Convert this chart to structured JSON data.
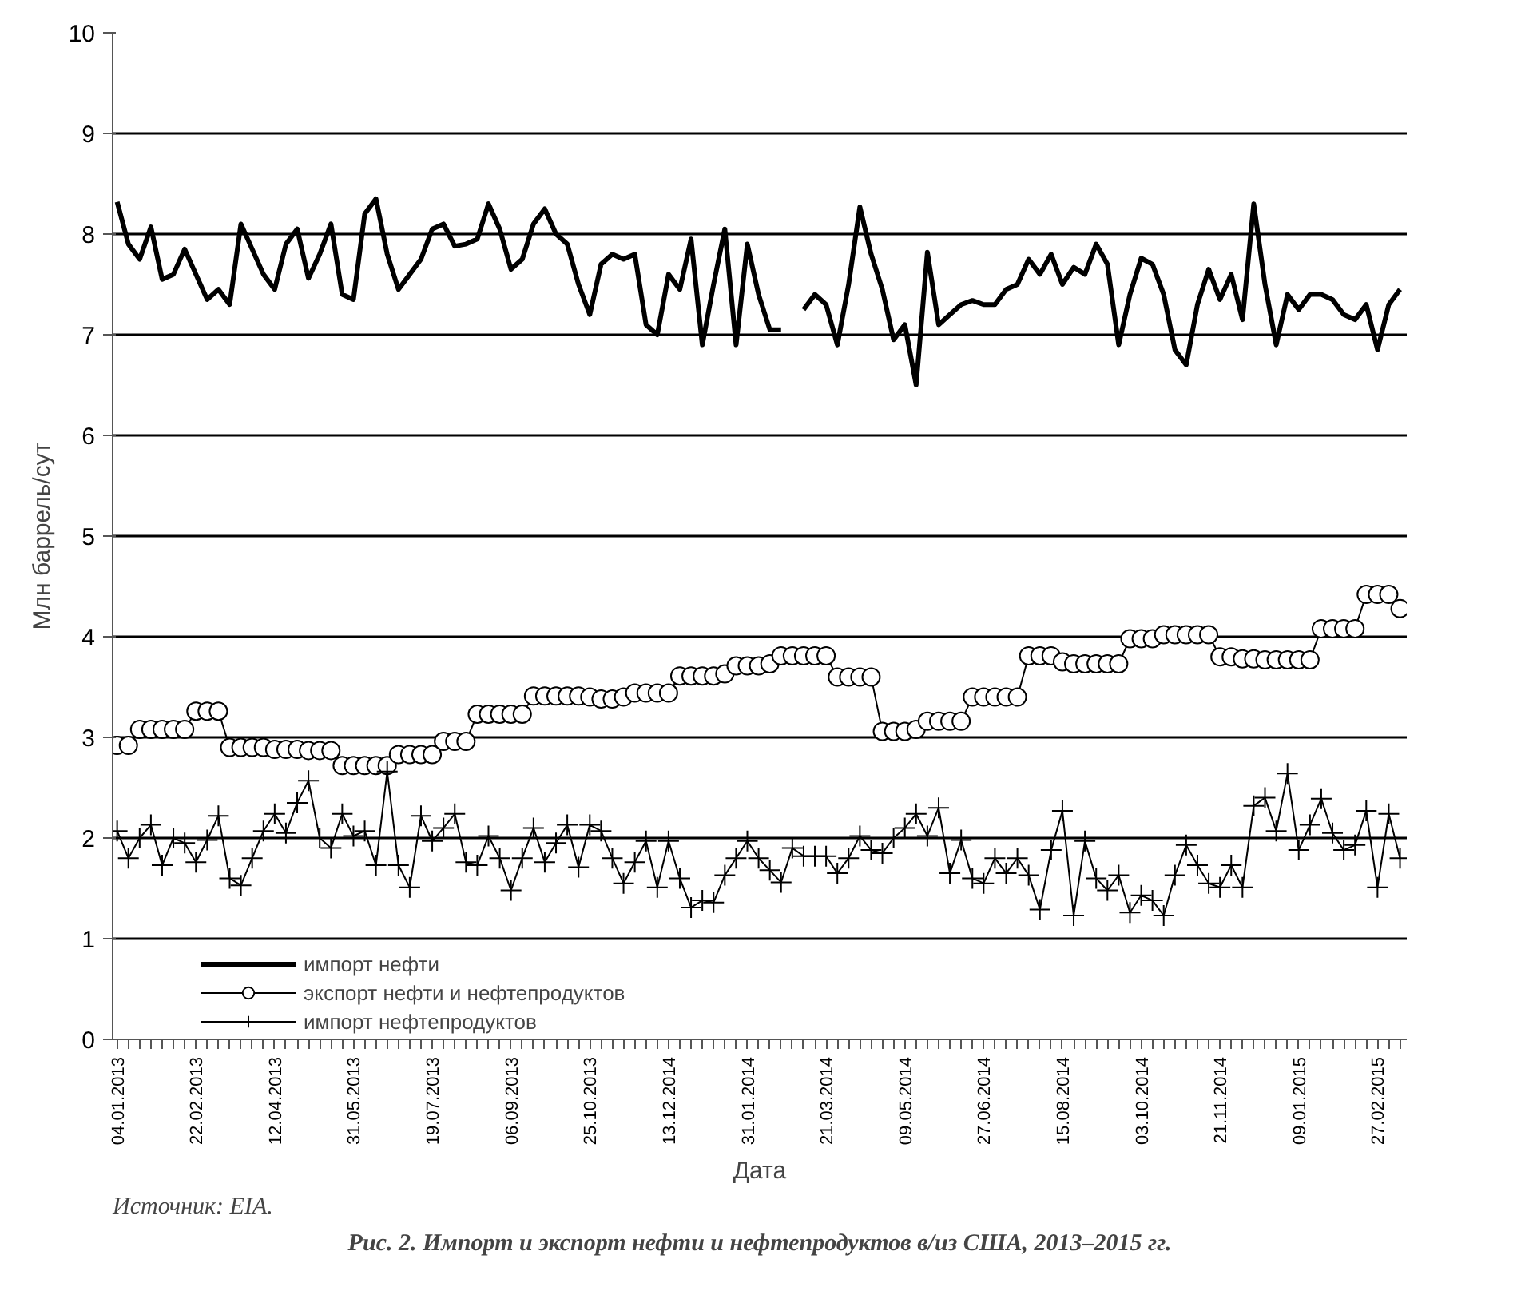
{
  "chart_data": {
    "type": "line",
    "title": "Рис. 2. Импорт и экспорт нефти и нефтепродуктов в/из США, 2013–2015 гг.",
    "xlabel": "Дата",
    "ylabel": "Млн баррель/сут",
    "annotations": [
      "Источник: EIA."
    ],
    "categories": [
      "04.01.2013",
      null,
      null,
      null,
      null,
      null,
      null,
      "22.02.2013",
      null,
      null,
      null,
      null,
      null,
      null,
      "12.04.2013",
      null,
      null,
      null,
      null,
      null,
      null,
      "31.05.2013",
      null,
      null,
      null,
      null,
      null,
      null,
      "19.07.2013",
      null,
      null,
      null,
      null,
      null,
      null,
      "06.09.2013",
      null,
      null,
      null,
      null,
      null,
      null,
      "25.10.2013",
      null,
      null,
      null,
      null,
      null,
      null,
      "13.12.2014",
      null,
      null,
      null,
      null,
      null,
      null,
      "31.01.2014",
      null,
      null,
      null,
      null,
      null,
      null,
      "21.03.2014",
      null,
      null,
      null,
      null,
      null,
      null,
      "09.05.2014",
      null,
      null,
      null,
      null,
      null,
      null,
      "27.06.2014",
      null,
      null,
      null,
      null,
      null,
      null,
      "15.08.2014",
      null,
      null,
      null,
      null,
      null,
      null,
      "03.10.2014",
      null,
      null,
      null,
      null,
      null,
      null,
      "21.11.2014",
      null,
      null,
      null,
      null,
      null,
      null,
      "09.01.2015",
      null,
      null,
      null,
      null,
      null,
      null,
      "27.02.2015",
      null,
      null
    ],
    "series": [
      {
        "name": "импорт нефти",
        "color": "#000000",
        "marker": "none",
        "values": [
          8.32,
          7.9,
          7.75,
          8.07,
          7.55,
          7.6,
          7.85,
          7.6,
          7.35,
          7.45,
          7.3,
          8.1,
          7.85,
          7.6,
          7.45,
          7.9,
          8.05,
          7.56,
          7.8,
          8.1,
          7.4,
          7.35,
          8.2,
          8.35,
          7.8,
          7.45,
          7.6,
          7.75,
          8.05,
          8.1,
          7.88,
          7.9,
          7.95,
          8.3,
          8.05,
          7.65,
          7.75,
          8.1,
          8.25,
          8.0,
          7.9,
          7.5,
          7.2,
          7.7,
          7.8,
          7.75,
          7.8,
          7.1,
          7.0,
          7.6,
          7.45,
          7.95,
          6.9,
          7.5,
          8.05,
          6.9,
          7.9,
          7.4,
          7.05,
          7.05,
          null,
          7.25,
          7.4,
          7.3,
          6.9,
          7.5,
          8.27,
          7.8,
          7.45,
          6.95,
          7.1,
          6.5,
          7.82,
          7.1,
          7.2,
          7.3,
          7.34,
          7.3,
          7.3,
          7.45,
          7.5,
          7.75,
          7.6,
          7.8,
          7.5,
          7.67,
          7.6,
          7.9,
          7.7,
          6.9,
          7.4,
          7.76,
          7.7,
          7.4,
          6.85,
          6.7,
          7.3,
          7.65,
          7.35,
          7.6,
          7.15,
          8.3,
          7.5,
          6.9,
          7.4,
          7.25,
          7.4,
          7.4,
          7.35,
          7.2,
          7.15,
          7.3,
          6.85,
          7.3,
          7.45
        ]
      },
      {
        "name": "экспорт нефти и нефтепродуктов",
        "color": "#000000",
        "marker": "circle",
        "values": [
          2.92,
          2.92,
          3.08,
          3.08,
          3.08,
          3.08,
          3.08,
          3.26,
          3.26,
          3.26,
          2.9,
          2.9,
          2.9,
          2.9,
          2.88,
          2.88,
          2.88,
          2.87,
          2.87,
          2.87,
          2.72,
          2.72,
          2.72,
          2.72,
          2.72,
          2.83,
          2.83,
          2.83,
          2.83,
          2.96,
          2.96,
          2.96,
          3.23,
          3.23,
          3.23,
          3.23,
          3.23,
          3.41,
          3.41,
          3.41,
          3.41,
          3.41,
          3.4,
          3.38,
          3.38,
          3.4,
          3.44,
          3.44,
          3.44,
          3.44,
          3.61,
          3.61,
          3.61,
          3.61,
          3.63,
          3.71,
          3.71,
          3.71,
          3.73,
          3.81,
          3.81,
          3.81,
          3.81,
          3.81,
          3.6,
          3.6,
          3.6,
          3.6,
          3.06,
          3.06,
          3.06,
          3.08,
          3.16,
          3.16,
          3.16,
          3.16,
          3.4,
          3.4,
          3.4,
          3.4,
          3.4,
          3.81,
          3.81,
          3.81,
          3.75,
          3.73,
          3.73,
          3.73,
          3.73,
          3.73,
          3.98,
          3.98,
          3.98,
          4.02,
          4.02,
          4.02,
          4.02,
          4.02,
          3.8,
          3.8,
          3.78,
          3.78,
          3.77,
          3.77,
          3.77,
          3.77,
          3.77,
          4.08,
          4.08,
          4.08,
          4.08,
          4.42,
          4.42,
          4.42,
          4.28
        ]
      },
      {
        "name": "импорт нефтепродуктов",
        "color": "#000000",
        "marker": "cross",
        "values": [
          2.07,
          1.8,
          2.0,
          2.13,
          1.73,
          2.0,
          1.95,
          1.76,
          1.98,
          2.22,
          1.6,
          1.53,
          1.8,
          2.07,
          2.24,
          2.05,
          2.35,
          2.57,
          2.0,
          1.9,
          2.24,
          2.02,
          2.07,
          1.73,
          2.66,
          1.73,
          1.51,
          2.22,
          1.97,
          2.1,
          2.24,
          1.76,
          1.73,
          2.02,
          1.8,
          1.48,
          1.8,
          2.1,
          1.76,
          1.95,
          2.13,
          1.71,
          2.13,
          2.07,
          1.8,
          1.55,
          1.76,
          1.97,
          1.51,
          1.97,
          1.6,
          1.31,
          1.38,
          1.36,
          1.63,
          1.8,
          1.97,
          1.8,
          1.68,
          1.56,
          1.9,
          1.82,
          1.82,
          1.82,
          1.65,
          1.8,
          2.02,
          1.88,
          1.85,
          2.0,
          2.1,
          2.24,
          2.02,
          2.3,
          1.65,
          1.98,
          1.6,
          1.55,
          1.8,
          1.65,
          1.8,
          1.63,
          1.29,
          1.88,
          2.27,
          1.23,
          1.97,
          1.6,
          1.48,
          1.63,
          1.26,
          1.43,
          1.38,
          1.23,
          1.63,
          1.93,
          1.73,
          1.55,
          1.51,
          1.73,
          1.51,
          2.32,
          2.4,
          2.07,
          2.64,
          1.88,
          2.13,
          2.39,
          2.05,
          1.88,
          1.93,
          2.27,
          1.51,
          2.24,
          1.8
        ]
      }
    ],
    "ylim": [
      0,
      10
    ],
    "yticks": [
      0,
      1,
      2,
      3,
      4,
      5,
      6,
      7,
      8,
      9,
      10
    ],
    "grid": "y",
    "legend": "bottom left"
  }
}
